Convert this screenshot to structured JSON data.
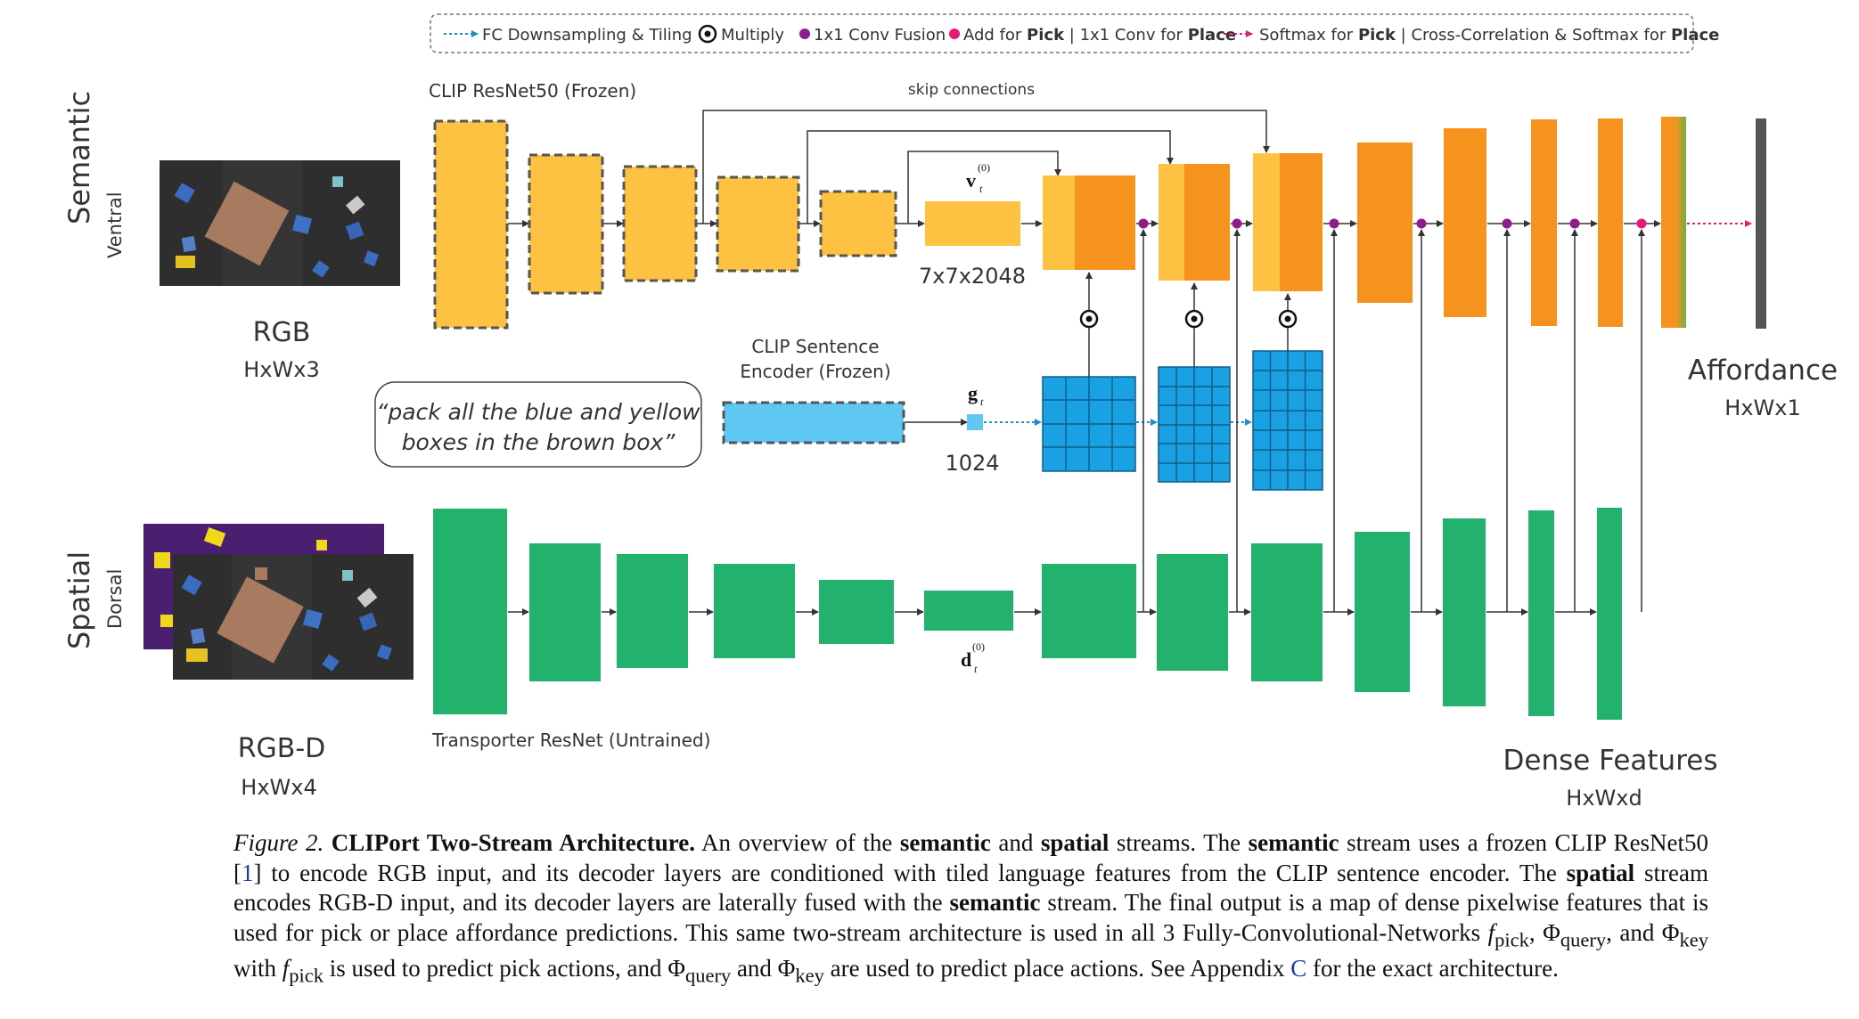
{
  "legend": {
    "fc_downsampling": "FC Downsampling & Tiling",
    "multiply": "Multiply",
    "conv_fusion": "1x1 Conv Fusion",
    "add_pre": "Add for ",
    "add_pick": "Pick",
    "add_mid": " | 1x1 Conv for ",
    "add_place": "Place",
    "softmax_pre": "Softmax for ",
    "softmax_pick": "Pick",
    "softmax_mid": " | Cross-Correlation & Softmax for ",
    "softmax_place": "Place"
  },
  "labels": {
    "semantic": "Semantic",
    "ventral": "Ventral",
    "spatial": "Spatial",
    "dorsal": "Dorsal",
    "clip_resnet": "CLIP ResNet50 (Frozen)",
    "skip_connections": "skip connections",
    "rgb": "RGB",
    "rgb_dims": "HxWx3",
    "rgbd": "RGB-D",
    "rgbd_dims": "HxWx4",
    "v_symbol": "v",
    "v_super": "(0)",
    "v_sub": "t",
    "feat_dims": "7x7x2048",
    "clip_sentence_1": "CLIP Sentence",
    "clip_sentence_2": "Encoder (Frozen)",
    "g_symbol": "g",
    "g_sub": "t",
    "g_dims": "1024",
    "instruction_1": "“pack all the blue and yellow",
    "instruction_2": "boxes in the brown box”",
    "d_symbol": "d",
    "d_super": "(0)",
    "d_sub": "t",
    "transporter": "Transporter ResNet (Untrained)",
    "affordance": "Affordance",
    "affordance_dims": "HxWx1",
    "dense": "Dense Features",
    "dense_dims": "HxWxd"
  },
  "caption": {
    "fig_label": "Figure 2.",
    "title": "CLIPort Two-Stream Architecture.",
    "s1": " An overview of the ",
    "semantic": "semantic",
    "s2": " and ",
    "spatial": "spatial",
    "s3": " streams. The ",
    "s4": " stream uses a frozen CLIP ResNet50 [",
    "cite1": "1",
    "s5": "] to encode RGB input, and its decoder layers are conditioned with tiled language features from the CLIP sentence encoder. The ",
    "s6": " stream encodes RGB-D input, and its decoder layers are laterally fused with the ",
    "s7": " stream. The final output is a map of dense pixelwise features that is used for pick or place affordance predictions. This same two-stream architecture is used in all 3 Fully-Convolutional-Networks ",
    "f_pick": "f",
    "pick_sub": "pick",
    "phi": "Φ",
    "query_sub": "query",
    "key_sub": "key",
    "s8": ", and ",
    "s9": " with ",
    "s10": " is used to predict pick actions, and ",
    "s11": " and ",
    "s12": " are used to predict place actions. See Appendix ",
    "appendix": "C",
    "s13": " for the exact architecture.",
    "comma": ", "
  },
  "colors": {
    "encoder_yellow": "#fec243",
    "decoder_orange": "#f6931f",
    "language_blue": "#1aa1e4",
    "sentence_blue": "#5ec8f3",
    "spatial_green": "#23b26d",
    "fusion_purple": "#8e1c8f",
    "add_pink": "#e8197a",
    "affordance_gray": "#555555"
  }
}
